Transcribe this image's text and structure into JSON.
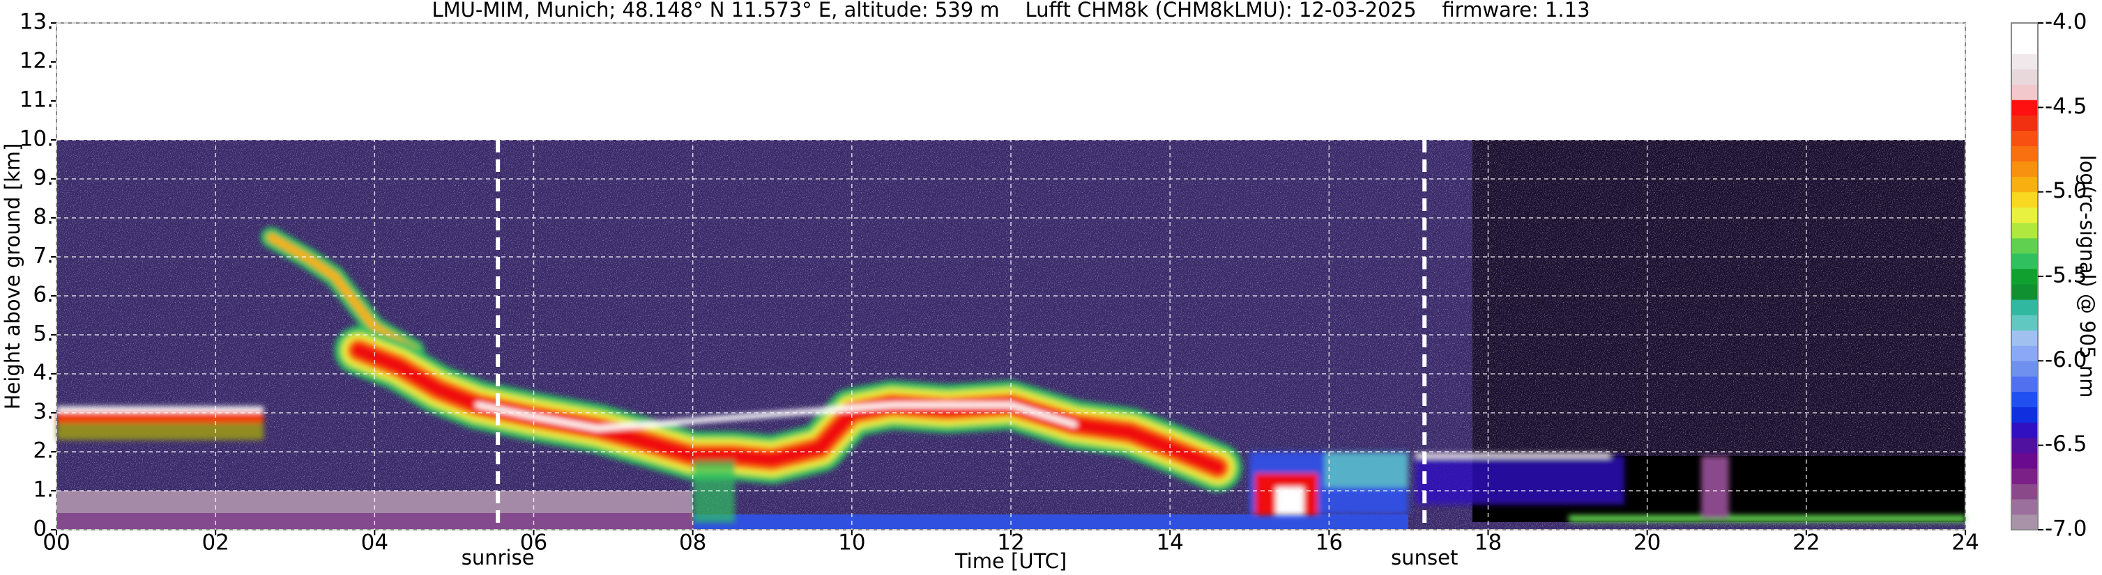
{
  "chart_data": {
    "type": "heatmap",
    "title": "LMU-MIM, Munich; 48.148° N 11.573° E, altitude: 539 m    Lufft CHM8k (CHM8kLMU): 12-03-2025    firmware: 1.13",
    "xlabel": "Time [UTC]",
    "ylabel": "Height above ground [km]",
    "xlim": [
      0,
      24
    ],
    "xticks": [
      {
        "value": 0,
        "label": "00"
      },
      {
        "value": 2,
        "label": "02"
      },
      {
        "value": 4,
        "label": "04"
      },
      {
        "value": 6,
        "label": "06"
      },
      {
        "value": 8,
        "label": "08"
      },
      {
        "value": 10,
        "label": "10"
      },
      {
        "value": 12,
        "label": "12"
      },
      {
        "value": 14,
        "label": "14"
      },
      {
        "value": 16,
        "label": "16"
      },
      {
        "value": 18,
        "label": "18"
      },
      {
        "value": 20,
        "label": "20"
      },
      {
        "value": 22,
        "label": "22"
      },
      {
        "value": 24,
        "label": "24"
      }
    ],
    "ylim": [
      0,
      13
    ],
    "yticks": [
      {
        "value": 0,
        "label": "0."
      },
      {
        "value": 1,
        "label": "1."
      },
      {
        "value": 2,
        "label": "2."
      },
      {
        "value": 3,
        "label": "3."
      },
      {
        "value": 4,
        "label": "4."
      },
      {
        "value": 5,
        "label": "5."
      },
      {
        "value": 6,
        "label": "6."
      },
      {
        "value": 7,
        "label": "7."
      },
      {
        "value": 8,
        "label": "8."
      },
      {
        "value": 9,
        "label": "9."
      },
      {
        "value": 10,
        "label": "10."
      },
      {
        "value": 11,
        "label": "11."
      },
      {
        "value": 12,
        "label": "12."
      },
      {
        "value": 13,
        "label": "13."
      }
    ],
    "grid": true,
    "annotations": [
      {
        "label": "sunrise",
        "x": 5.55
      },
      {
        "label": "sunset",
        "x": 17.2
      }
    ],
    "colorbar": {
      "label": "log(rc-signal) @ 905 nm",
      "lim": [
        -7,
        -4
      ],
      "ticks": [
        {
          "value": -4,
          "label": "-4.0"
        },
        {
          "value": -4.5,
          "label": "-4.5"
        },
        {
          "value": -5,
          "label": "-5.0"
        },
        {
          "value": -5.5,
          "label": "-5.5"
        },
        {
          "value": -6,
          "label": "-6.0"
        },
        {
          "value": -6.5,
          "label": "-6.5"
        },
        {
          "value": -7,
          "label": "-7.0"
        }
      ],
      "colors": [
        "#a893a8",
        "#9c709c",
        "#8a4a8a",
        "#7a2086",
        "#6a0a8f",
        "#5010a0",
        "#3010c0",
        "#1030e0",
        "#2050f0",
        "#5070f0",
        "#7090f0",
        "#8aa8f5",
        "#a0c0f0",
        "#60c8c0",
        "#30b8a0",
        "#109030",
        "#10a030",
        "#30c060",
        "#60d050",
        "#b0e840",
        "#e8f040",
        "#f8d820",
        "#f8b010",
        "#f89010",
        "#f87010",
        "#f85010",
        "#f03010",
        "#ff1010",
        "#f2c8cc",
        "#e8d8dc",
        "#f0e8ea",
        "#ffffff",
        "#ffffff"
      ]
    }
  }
}
